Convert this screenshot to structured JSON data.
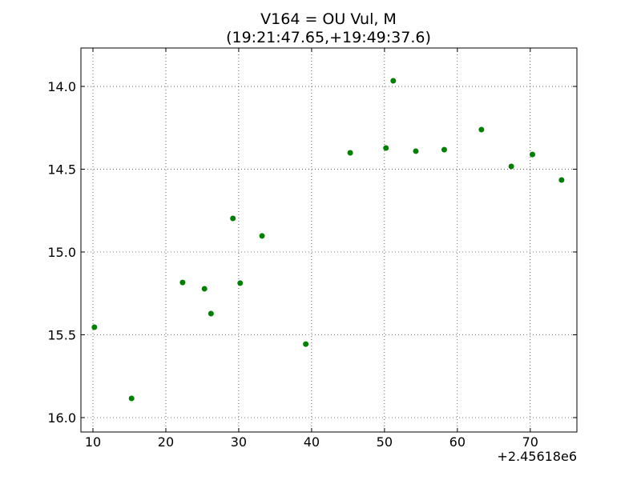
{
  "chart_data": {
    "type": "scatter",
    "title": "V164 = OU Vul, M",
    "subtitle": "(19:21:47.65,+19:49:37.6)",
    "x_offset_label": "+2.45618e6",
    "x": [
      10.2,
      15.3,
      22.3,
      25.3,
      26.2,
      29.2,
      30.2,
      33.2,
      39.2,
      45.3,
      50.2,
      51.2,
      54.3,
      58.2,
      63.3,
      67.4,
      70.3,
      74.3
    ],
    "values": [
      15.454,
      15.884,
      15.184,
      15.222,
      15.372,
      14.797,
      15.188,
      14.903,
      15.556,
      14.401,
      14.372,
      13.966,
      14.391,
      14.382,
      14.261,
      14.483,
      14.411,
      14.565
    ],
    "color": "#008000",
    "xlim": [
      8.35,
      76.4
    ],
    "ylim": [
      16.087,
      13.768
    ],
    "xticks": [
      10,
      20,
      30,
      40,
      50,
      60,
      70
    ],
    "yticks": [
      {
        "value": 14,
        "label": "14.0"
      },
      {
        "value": 14.5,
        "label": "14.5"
      },
      {
        "value": 15,
        "label": "15.0"
      },
      {
        "value": 15.5,
        "label": "15.5"
      },
      {
        "value": 16,
        "label": "16.0"
      }
    ],
    "grid": true
  }
}
